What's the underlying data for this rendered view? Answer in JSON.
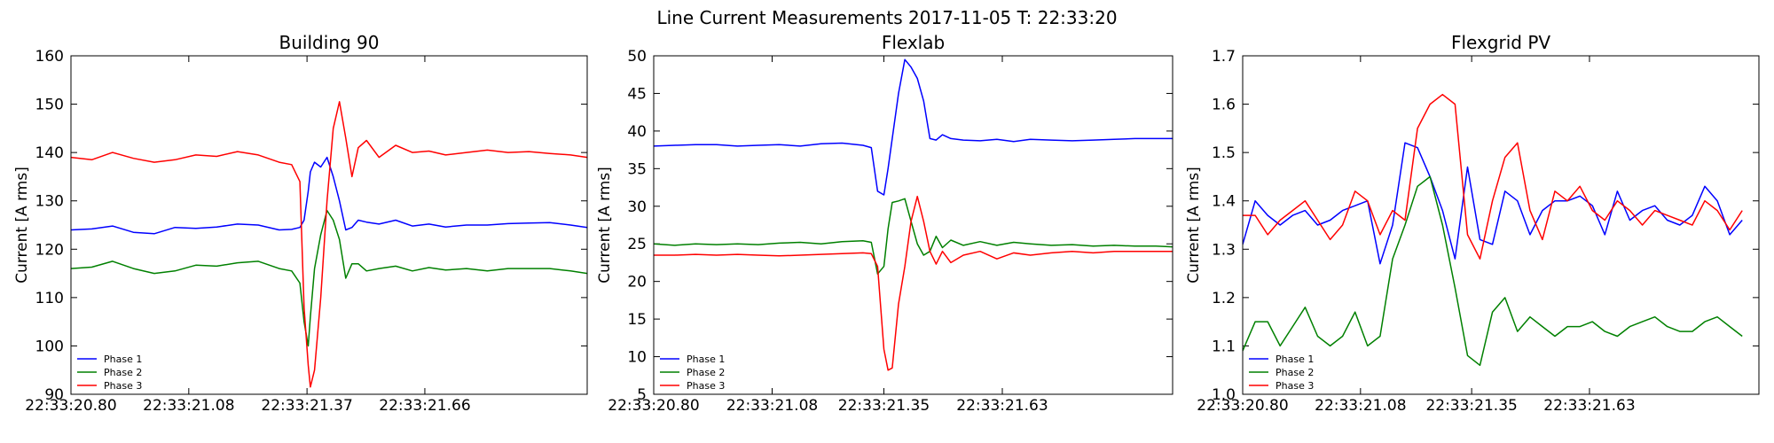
{
  "figure": {
    "title": "Line Current Measurements 2017-11-05 T: 22:33:20"
  },
  "colors": {
    "phase1": "#0000ff",
    "phase2": "#008000",
    "phase3": "#ff0000"
  },
  "chart_data": [
    {
      "type": "line",
      "title": "Building 90",
      "ylabel": "Current [A rms]",
      "xlabel": "",
      "xlim": [
        0,
        1.24
      ],
      "ylim": [
        90,
        160
      ],
      "yticks": [
        90,
        100,
        110,
        120,
        130,
        140,
        150,
        160
      ],
      "xticks": [
        {
          "value": 0,
          "label": "22:33:20.80"
        },
        {
          "value": 0.283,
          "label": "22:33:21.08"
        },
        {
          "value": 0.567,
          "label": "22:33:21.37"
        },
        {
          "value": 0.85,
          "label": "22:33:21.66"
        }
      ],
      "legend": "lower-left",
      "x": [
        0,
        0.05,
        0.1,
        0.15,
        0.2,
        0.25,
        0.3,
        0.35,
        0.4,
        0.45,
        0.5,
        0.53,
        0.55,
        0.56,
        0.57,
        0.575,
        0.585,
        0.6,
        0.615,
        0.63,
        0.645,
        0.66,
        0.675,
        0.69,
        0.71,
        0.74,
        0.78,
        0.82,
        0.86,
        0.9,
        0.95,
        1.0,
        1.05,
        1.1,
        1.15,
        1.2,
        1.24
      ],
      "series": [
        {
          "name": "Phase 1",
          "color_key": "phase1",
          "values": [
            124,
            124.2,
            124.8,
            123.5,
            123.2,
            124.5,
            124.3,
            124.6,
            125.2,
            125.0,
            124.0,
            124.1,
            124.5,
            126,
            132,
            136,
            138,
            137,
            139,
            135,
            130,
            124,
            124.5,
            126,
            125.6,
            125.2,
            126,
            124.8,
            125.2,
            124.6,
            125,
            125,
            125.3,
            125.4,
            125.5,
            125,
            124.5
          ]
        },
        {
          "name": "Phase 2",
          "color_key": "phase2",
          "values": [
            116,
            116.3,
            117.5,
            116,
            115,
            115.5,
            116.7,
            116.5,
            117.2,
            117.5,
            116,
            115.5,
            113,
            105,
            100,
            106,
            116,
            123,
            128,
            126,
            122,
            114,
            117,
            117,
            115.5,
            116,
            116.5,
            115.5,
            116.2,
            115.7,
            116,
            115.5,
            116,
            116,
            116,
            115.5,
            115
          ]
        },
        {
          "name": "Phase 3",
          "color_key": "phase3",
          "values": [
            139,
            138.5,
            140,
            138.8,
            138,
            138.5,
            139.5,
            139.2,
            140.2,
            139.5,
            138,
            137.5,
            134,
            108,
            96,
            91.5,
            95,
            110,
            130,
            145,
            150.5,
            143,
            135,
            141,
            142.5,
            139,
            141.5,
            140,
            140.3,
            139.5,
            140,
            140.5,
            140,
            140.2,
            139.8,
            139.5,
            139
          ]
        }
      ]
    },
    {
      "type": "line",
      "title": "Flexlab",
      "ylabel": "Current [A rms]",
      "xlabel": "",
      "xlim": [
        0,
        1.24
      ],
      "ylim": [
        5,
        50
      ],
      "yticks": [
        5,
        10,
        15,
        20,
        25,
        30,
        35,
        40,
        45,
        50
      ],
      "xticks": [
        {
          "value": 0,
          "label": "22:33:20.80"
        },
        {
          "value": 0.283,
          "label": "22:33:21.08"
        },
        {
          "value": 0.55,
          "label": "22:33:21.35"
        },
        {
          "value": 0.833,
          "label": "22:33:21.63"
        }
      ],
      "legend": "lower-left",
      "x": [
        0,
        0.05,
        0.1,
        0.15,
        0.2,
        0.25,
        0.3,
        0.35,
        0.4,
        0.45,
        0.5,
        0.52,
        0.535,
        0.55,
        0.56,
        0.57,
        0.585,
        0.6,
        0.615,
        0.63,
        0.645,
        0.66,
        0.675,
        0.69,
        0.71,
        0.74,
        0.78,
        0.82,
        0.86,
        0.9,
        0.95,
        1.0,
        1.05,
        1.1,
        1.15,
        1.2,
        1.24
      ],
      "series": [
        {
          "name": "Phase 1",
          "color_key": "phase1",
          "values": [
            38,
            38.1,
            38.2,
            38.2,
            38.0,
            38.1,
            38.2,
            38.0,
            38.3,
            38.4,
            38.1,
            37.8,
            32,
            31.5,
            35,
            39,
            45,
            49.5,
            48.5,
            47,
            44,
            39,
            38.8,
            39.5,
            39,
            38.8,
            38.7,
            38.9,
            38.6,
            38.9,
            38.8,
            38.7,
            38.8,
            38.9,
            39.0,
            39.0,
            39.0
          ]
        },
        {
          "name": "Phase 2",
          "color_key": "phase2",
          "values": [
            25,
            24.8,
            25.0,
            24.9,
            25.0,
            24.9,
            25.1,
            25.2,
            25.0,
            25.3,
            25.4,
            25.2,
            21,
            22,
            27,
            30.5,
            30.7,
            31,
            28,
            25,
            23.5,
            24,
            26,
            24.5,
            25.5,
            24.8,
            25.3,
            24.8,
            25.2,
            25.0,
            24.8,
            24.9,
            24.7,
            24.8,
            24.7,
            24.7,
            24.6
          ]
        },
        {
          "name": "Phase 3",
          "color_key": "phase3",
          "values": [
            23.5,
            23.5,
            23.6,
            23.5,
            23.6,
            23.5,
            23.4,
            23.5,
            23.6,
            23.7,
            23.8,
            23.7,
            22,
            11,
            8.2,
            8.5,
            17,
            22,
            28,
            31.3,
            28,
            24,
            22.3,
            24,
            22.5,
            23.5,
            24,
            23,
            23.8,
            23.5,
            23.8,
            24.0,
            23.8,
            24.0,
            24.0,
            24.0,
            24.0
          ]
        }
      ]
    },
    {
      "type": "line",
      "title": "Flexgrid PV",
      "ylabel": "Current [A rms]",
      "xlabel": "",
      "xlim": [
        0,
        1.24
      ],
      "ylim": [
        1.0,
        1.7
      ],
      "yticks": [
        1.0,
        1.1,
        1.2,
        1.3,
        1.4,
        1.5,
        1.6,
        1.7
      ],
      "xticks": [
        {
          "value": 0,
          "label": "22:33:20.80"
        },
        {
          "value": 0.283,
          "label": "22:33:21.08"
        },
        {
          "value": 0.55,
          "label": "22:33:21.35"
        },
        {
          "value": 0.833,
          "label": "22:33:21.63"
        }
      ],
      "legend": "lower-left",
      "x": [
        0,
        0.03,
        0.06,
        0.09,
        0.12,
        0.15,
        0.18,
        0.21,
        0.24,
        0.27,
        0.3,
        0.33,
        0.36,
        0.39,
        0.42,
        0.45,
        0.48,
        0.51,
        0.54,
        0.57,
        0.6,
        0.63,
        0.66,
        0.69,
        0.72,
        0.75,
        0.78,
        0.81,
        0.84,
        0.87,
        0.9,
        0.93,
        0.96,
        0.99,
        1.02,
        1.05,
        1.08,
        1.11,
        1.14,
        1.17,
        1.2
      ],
      "series": [
        {
          "name": "Phase 1",
          "color_key": "phase1",
          "values": [
            1.31,
            1.4,
            1.37,
            1.35,
            1.37,
            1.38,
            1.35,
            1.36,
            1.38,
            1.39,
            1.4,
            1.27,
            1.35,
            1.52,
            1.51,
            1.45,
            1.38,
            1.28,
            1.47,
            1.32,
            1.31,
            1.42,
            1.4,
            1.33,
            1.38,
            1.4,
            1.4,
            1.41,
            1.39,
            1.33,
            1.42,
            1.36,
            1.38,
            1.39,
            1.36,
            1.35,
            1.37,
            1.43,
            1.4,
            1.33,
            1.36
          ]
        },
        {
          "name": "Phase 2",
          "color_key": "phase2",
          "values": [
            1.09,
            1.15,
            1.15,
            1.1,
            1.14,
            1.18,
            1.12,
            1.1,
            1.12,
            1.17,
            1.1,
            1.12,
            1.28,
            1.35,
            1.43,
            1.45,
            1.35,
            1.22,
            1.08,
            1.06,
            1.17,
            1.2,
            1.13,
            1.16,
            1.14,
            1.12,
            1.14,
            1.14,
            1.15,
            1.13,
            1.12,
            1.14,
            1.15,
            1.16,
            1.14,
            1.13,
            1.13,
            1.15,
            1.16,
            1.14,
            1.12
          ]
        },
        {
          "name": "Phase 3",
          "color_key": "phase3",
          "values": [
            1.37,
            1.37,
            1.33,
            1.36,
            1.38,
            1.4,
            1.36,
            1.32,
            1.35,
            1.42,
            1.4,
            1.33,
            1.38,
            1.36,
            1.55,
            1.6,
            1.62,
            1.6,
            1.33,
            1.28,
            1.4,
            1.49,
            1.52,
            1.38,
            1.32,
            1.42,
            1.4,
            1.43,
            1.38,
            1.36,
            1.4,
            1.38,
            1.35,
            1.38,
            1.37,
            1.36,
            1.35,
            1.4,
            1.38,
            1.34,
            1.38
          ]
        }
      ]
    }
  ]
}
